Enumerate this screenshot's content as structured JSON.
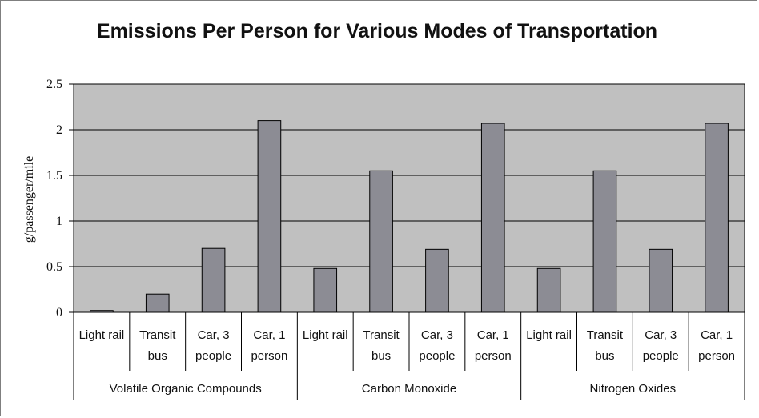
{
  "chart_data": {
    "type": "bar",
    "title": "Emissions Per Person for Various Modes of Transportation",
    "ylabel": "g/passenger/mile",
    "xlabel": "",
    "ylim": [
      0,
      2.5
    ],
    "yticks": [
      "0",
      "0.5",
      "1",
      "1.5",
      "2",
      "2.5"
    ],
    "grid": true,
    "colors": {
      "plot_bg": "#c0c0c0",
      "bar": "#8c8c94",
      "bar_stroke": "#000000",
      "grid": "#000000"
    },
    "categories": [
      "Light rail",
      "Transit bus",
      "Car, 3 people",
      "Car, 1 person"
    ],
    "category_lines": [
      [
        "Light rail"
      ],
      [
        "Transit",
        "bus"
      ],
      [
        "Car, 3",
        "people"
      ],
      [
        "Car, 1",
        "person"
      ]
    ],
    "groups": [
      {
        "name": "Volatile Organic Compounds",
        "values": [
          0.02,
          0.2,
          0.7,
          2.1
        ]
      },
      {
        "name": "Carbon Monoxide",
        "values": [
          0.48,
          1.55,
          0.69,
          2.07
        ]
      },
      {
        "name": "Nitrogen Oxides",
        "values": [
          0.48,
          1.55,
          0.69,
          2.07
        ]
      }
    ]
  }
}
